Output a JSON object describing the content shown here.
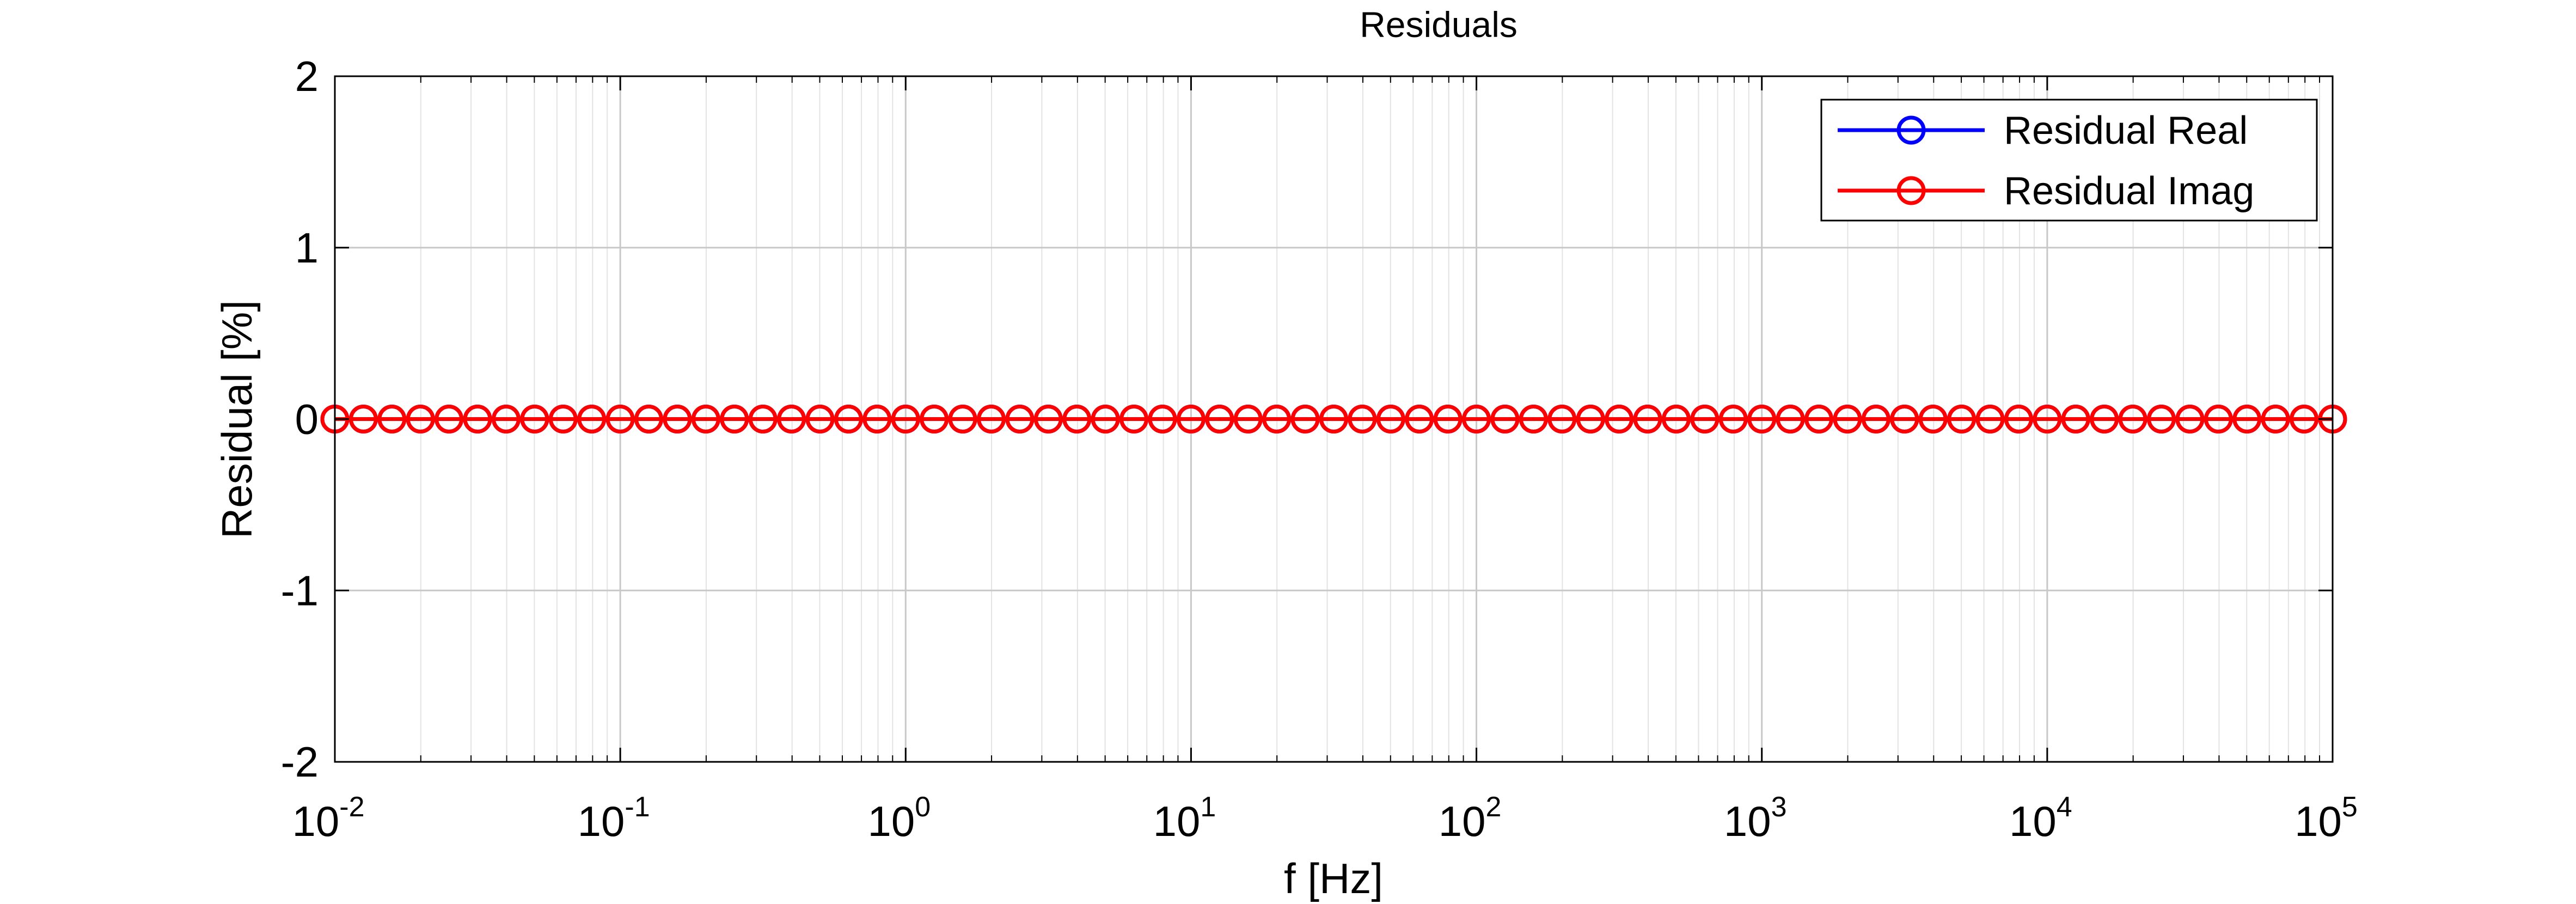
{
  "chart_data": {
    "type": "line",
    "title": "Residuals",
    "xlabel": "f [Hz]",
    "ylabel": "Residual [%]",
    "xscale": "log",
    "xlim": [
      0.01,
      100000
    ],
    "ylim": [
      -2,
      2
    ],
    "grid": true,
    "legend_position": "top-right",
    "x_ticks": [
      {
        "base": "10",
        "exp": "-2",
        "value": 0.01
      },
      {
        "base": "10",
        "exp": "-1",
        "value": 0.1
      },
      {
        "base": "10",
        "exp": "0",
        "value": 1
      },
      {
        "base": "10",
        "exp": "1",
        "value": 10
      },
      {
        "base": "10",
        "exp": "2",
        "value": 100
      },
      {
        "base": "10",
        "exp": "3",
        "value": 1000
      },
      {
        "base": "10",
        "exp": "4",
        "value": 10000
      },
      {
        "base": "10",
        "exp": "5",
        "value": 100000
      }
    ],
    "y_ticks": [
      {
        "label": "-2",
        "value": -2
      },
      {
        "label": "-1",
        "value": -1
      },
      {
        "label": "0",
        "value": 0
      },
      {
        "label": "1",
        "value": 1
      },
      {
        "label": "2",
        "value": 2
      }
    ],
    "x_log_range": {
      "start_exponent": -2,
      "end_exponent": 5,
      "points_per_decade": 10
    },
    "series": [
      {
        "name": "Residual Real",
        "color": "#0000ff",
        "marker": "circle",
        "y_constant": 0
      },
      {
        "name": "Residual Imag",
        "color": "#ff0000",
        "marker": "circle",
        "y_constant": 0
      }
    ]
  }
}
